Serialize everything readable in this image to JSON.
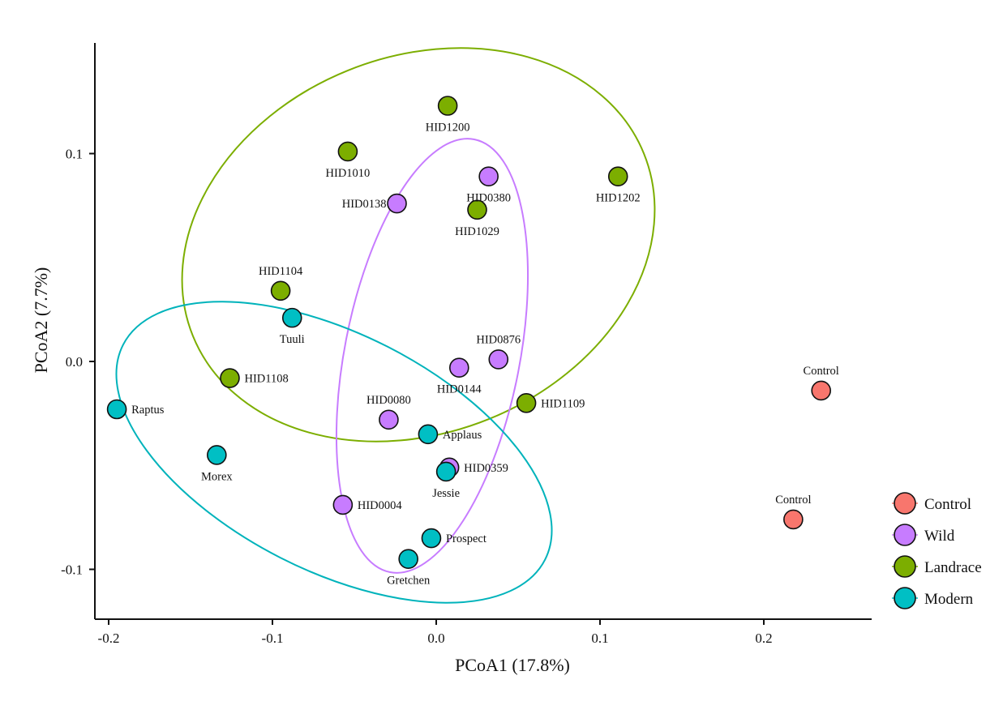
{
  "chart_data": {
    "type": "scatter",
    "title": "",
    "xlabel": "PCoA1 (17.8%)",
    "ylabel": "PCoA2 (7.7%)",
    "xlim": [
      -0.205,
      0.265
    ],
    "ylim": [
      -0.1245,
      0.1525
    ],
    "xticks": [
      -0.2,
      -0.1,
      0.0,
      0.1,
      0.2
    ],
    "xtick_labels": [
      "-0.2",
      "-0.1",
      "0.0",
      "0.1",
      "0.2"
    ],
    "yticks": [
      -0.1,
      0.0,
      0.1
    ],
    "ytick_labels": [
      "-0.1",
      "0.0",
      "0.1"
    ],
    "grid": false,
    "legend_position": "right",
    "groups": [
      {
        "name": "Control",
        "color": "#f8766d"
      },
      {
        "name": "Wild",
        "color": "#c77cff"
      },
      {
        "name": "Landrace",
        "color": "#7cae00"
      },
      {
        "name": "Modern",
        "color": "#00bfc4"
      }
    ],
    "points": [
      {
        "label": "HID1200",
        "group": "Landrace",
        "x": 0.007,
        "y": 0.123,
        "pos": "below"
      },
      {
        "label": "HID1010",
        "group": "Landrace",
        "x": -0.054,
        "y": 0.101,
        "pos": "below"
      },
      {
        "label": "HID1202",
        "group": "Landrace",
        "x": 0.111,
        "y": 0.089,
        "pos": "below"
      },
      {
        "label": "HID1029",
        "group": "Landrace",
        "x": 0.025,
        "y": 0.073,
        "pos": "below"
      },
      {
        "label": "HID1104",
        "group": "Landrace",
        "x": -0.095,
        "y": 0.034,
        "pos": "above"
      },
      {
        "label": "HID1108",
        "group": "Landrace",
        "x": -0.126,
        "y": -0.008,
        "pos": "right"
      },
      {
        "label": "HID1109",
        "group": "Landrace",
        "x": 0.055,
        "y": -0.02,
        "pos": "right"
      },
      {
        "label": "HID0380",
        "group": "Wild",
        "x": 0.032,
        "y": 0.089,
        "pos": "below"
      },
      {
        "label": "HID0138",
        "group": "Wild",
        "x": -0.024,
        "y": 0.076,
        "pos": "left"
      },
      {
        "label": "HID0876",
        "group": "Wild",
        "x": 0.038,
        "y": 0.001,
        "pos": "above"
      },
      {
        "label": "HID0144",
        "group": "Wild",
        "x": 0.014,
        "y": -0.003,
        "pos": "below"
      },
      {
        "label": "HID0080",
        "group": "Wild",
        "x": -0.029,
        "y": -0.028,
        "pos": "above"
      },
      {
        "label": "HID0359",
        "group": "Wild",
        "x": 0.008,
        "y": -0.051,
        "pos": "right"
      },
      {
        "label": "HID0004",
        "group": "Wild",
        "x": -0.057,
        "y": -0.069,
        "pos": "right"
      },
      {
        "label": "Tuuli",
        "group": "Modern",
        "x": -0.088,
        "y": 0.021,
        "pos": "below"
      },
      {
        "label": "Raptus",
        "group": "Modern",
        "x": -0.195,
        "y": -0.023,
        "pos": "right"
      },
      {
        "label": "Applaus",
        "group": "Modern",
        "x": -0.005,
        "y": -0.035,
        "pos": "right"
      },
      {
        "label": "Morex",
        "group": "Modern",
        "x": -0.134,
        "y": -0.045,
        "pos": "below"
      },
      {
        "label": "Jessie",
        "group": "Modern",
        "x": 0.006,
        "y": -0.053,
        "pos": "below"
      },
      {
        "label": "Prospect",
        "group": "Modern",
        "x": -0.003,
        "y": -0.085,
        "pos": "right"
      },
      {
        "label": "Gretchen",
        "group": "Modern",
        "x": -0.017,
        "y": -0.095,
        "pos": "below"
      },
      {
        "label": "Control",
        "group": "Control",
        "x": 0.235,
        "y": -0.014,
        "pos": "above"
      },
      {
        "label": "Control",
        "group": "Control",
        "x": 0.218,
        "y": -0.076,
        "pos": "above"
      }
    ]
  }
}
